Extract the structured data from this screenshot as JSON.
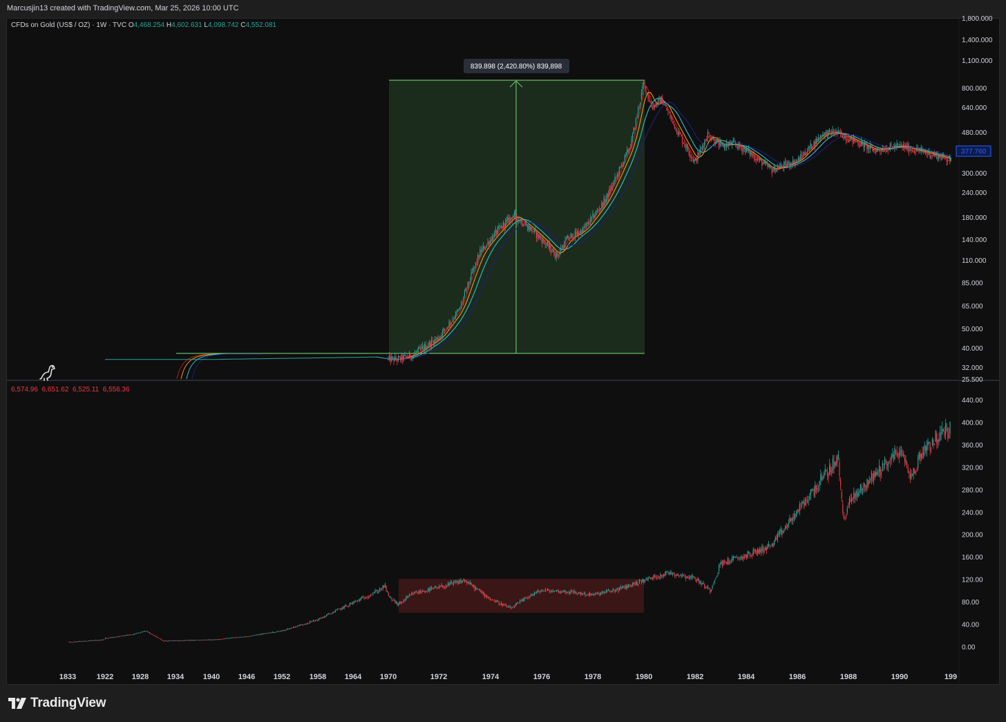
{
  "header": {
    "attribution": "Marcusjin13 created with TradingView.com, Mar 25, 2026 10:00 UTC"
  },
  "top_pane": {
    "symbol": "CFDs on Gold (US$ / OZ) · 1W · TVC",
    "ohlc": {
      "o_label": "O",
      "o": "4,468.254",
      "h_label": "H",
      "h": "4,602.631",
      "l_label": "L",
      "l": "4,098.742",
      "c_label": "C",
      "c": "4,552.081"
    },
    "measure_label": "839.898 (2,420.80%) 839,898",
    "price_tag": "377.760",
    "y_ticks": [
      "1,800.000",
      "1,400.000",
      "1,100.000",
      "800.000",
      "640.000",
      "480.000",
      "300.000",
      "240.000",
      "180.000",
      "140.000",
      "110.000",
      "85.000",
      "65.000",
      "50.000",
      "40.000",
      "32.000",
      "25.500"
    ]
  },
  "bottom_pane": {
    "ohlc": [
      "6,574.96",
      "6,651.62",
      "6,525.11",
      "6,556.36"
    ],
    "y_ticks": [
      "440.00",
      "400.00",
      "360.00",
      "320.00",
      "280.00",
      "240.00",
      "200.00",
      "160.00",
      "120.00",
      "80.00",
      "40.00",
      "0.00"
    ]
  },
  "x_axis": {
    "ticks": [
      "1833",
      "1922",
      "1928",
      "1934",
      "1940",
      "1946",
      "1952",
      "1958",
      "1964",
      "1970",
      "1972",
      "1974",
      "1976",
      "1978",
      "1980",
      "1982",
      "1984",
      "1986",
      "1988",
      "1990",
      "199"
    ]
  },
  "footer": {
    "brand": "TradingView"
  },
  "colors": {
    "background": "#0f0f0f",
    "up": "#26a69a",
    "down": "#f23645",
    "measure_green": "#66bb6a",
    "ma_blue": "#1a237e",
    "ma_teal": "#26c6da",
    "ma_orange": "#ff9800",
    "ma_red": "#b71c1c"
  },
  "chart_data": [
    {
      "type": "line",
      "title": "CFDs on Gold (US$ / OZ) · 1W · TVC",
      "scale": "log",
      "x": [
        1925,
        1940,
        1968,
        1970.4,
        1971,
        1972,
        1972.8,
        1973.3,
        1973.6,
        1974.2,
        1974.9,
        1975.5,
        1976,
        1976.6,
        1977,
        1977.6,
        1978,
        1978.5,
        1979,
        1979.5,
        1980.0,
        1980.3,
        1980.7,
        1981,
        1981.5,
        1982,
        1982.5,
        1983,
        1983.5,
        1984,
        1985,
        1986,
        1987,
        1987.5,
        1988,
        1989,
        1990,
        1991,
        1992,
        1992.4
      ],
      "y": [
        35,
        35,
        36,
        35,
        37,
        45,
        62,
        95,
        120,
        150,
        185,
        160,
        140,
        115,
        140,
        155,
        180,
        220,
        300,
        420,
        850,
        640,
        700,
        580,
        440,
        340,
        470,
        410,
        420,
        390,
        310,
        345,
        470,
        480,
        450,
        390,
        410,
        380,
        350,
        332
      ],
      "ylim": [
        25.5,
        1800
      ]
    },
    {
      "type": "line",
      "x": [
        1836,
        1920,
        1927,
        1929,
        1932,
        1940,
        1946,
        1952,
        1958,
        1964,
        1968,
        1969.5,
        1970.4,
        1971,
        1972,
        1973,
        1974,
        1974.8,
        1975.5,
        1976,
        1977,
        1978,
        1979,
        1980,
        1981,
        1982,
        1982.6,
        1983,
        1984,
        1985,
        1986,
        1987,
        1987.6,
        1987.8,
        1988,
        1989,
        1990,
        1990.5,
        1990.8,
        1991,
        1992,
        1992.4
      ],
      "y": [
        8,
        12,
        22,
        28,
        10,
        12,
        18,
        28,
        48,
        78,
        98,
        108,
        75,
        95,
        105,
        118,
        85,
        68,
        90,
        100,
        98,
        92,
        102,
        118,
        132,
        122,
        100,
        148,
        162,
        180,
        240,
        300,
        335,
        225,
        255,
        305,
        350,
        300,
        340,
        355,
        390,
        420
      ],
      "ylim": [
        -20,
        460
      ]
    }
  ]
}
